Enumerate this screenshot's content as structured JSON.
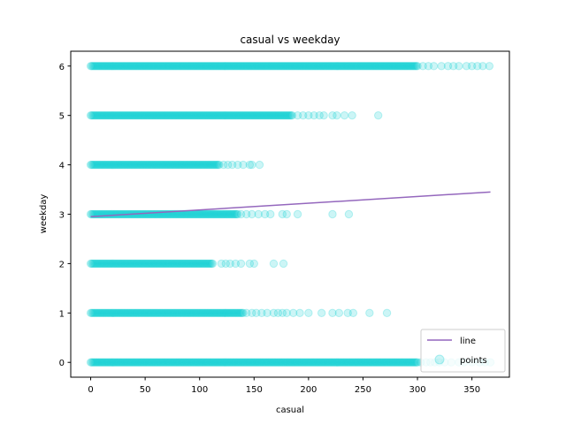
{
  "chart_data": {
    "type": "scatter",
    "title": "casual vs weekday",
    "xlabel": "casual",
    "ylabel": "weekday",
    "xlim": [
      -18.3,
      384.4
    ],
    "ylim": [
      -0.3,
      6.3
    ],
    "xticks": [
      0,
      50,
      100,
      150,
      200,
      250,
      300,
      350
    ],
    "yticks": [
      0,
      1,
      2,
      3,
      4,
      5,
      6
    ],
    "grid": false,
    "legend_position": "lower-right",
    "colors": {
      "points": "#00ced1",
      "line": "#9467bd"
    },
    "series": [
      {
        "name": "points",
        "kind": "scatter",
        "density_note": "dense continuous band from x=0 to row max, sparse outliers beyond",
        "rows": [
          {
            "y": 0,
            "dense_max": 300,
            "outliers": [
              303,
              308,
              312,
              316,
              320,
              325,
              331,
              338,
              343,
              350,
              357,
              362,
              367
            ]
          },
          {
            "y": 1,
            "dense_max": 140,
            "outliers": [
              143,
              148,
              152,
              157,
              162,
              168,
              172,
              176,
              180,
              186,
              192,
              200,
              212,
              222,
              228,
              236,
              241,
              256,
              272
            ]
          },
          {
            "y": 2,
            "dense_max": 112,
            "outliers": [
              120,
              124,
              128,
              133,
              138,
              146,
              150,
              168,
              177
            ]
          },
          {
            "y": 3,
            "dense_max": 135,
            "outliers": [
              138,
              143,
              148,
              154,
              160,
              165,
              176,
              180,
              190,
              222,
              237
            ]
          },
          {
            "y": 4,
            "dense_max": 118,
            "outliers": [
              122,
              126,
              130,
              135,
              140,
              146,
              148,
              155
            ]
          },
          {
            "y": 5,
            "dense_max": 185,
            "outliers": [
              190,
              195,
              200,
              205,
              210,
              214,
              222,
              226,
              233,
              240,
              264
            ]
          },
          {
            "y": 6,
            "dense_max": 300,
            "outliers": [
              305,
              310,
              315,
              322,
              328,
              333,
              338,
              345,
              350,
              355,
              360,
              366
            ]
          }
        ]
      },
      {
        "name": "line",
        "kind": "line",
        "x": [
          0,
          367
        ],
        "y": [
          2.95,
          3.45
        ]
      }
    ],
    "legend": [
      "line",
      "points"
    ]
  }
}
